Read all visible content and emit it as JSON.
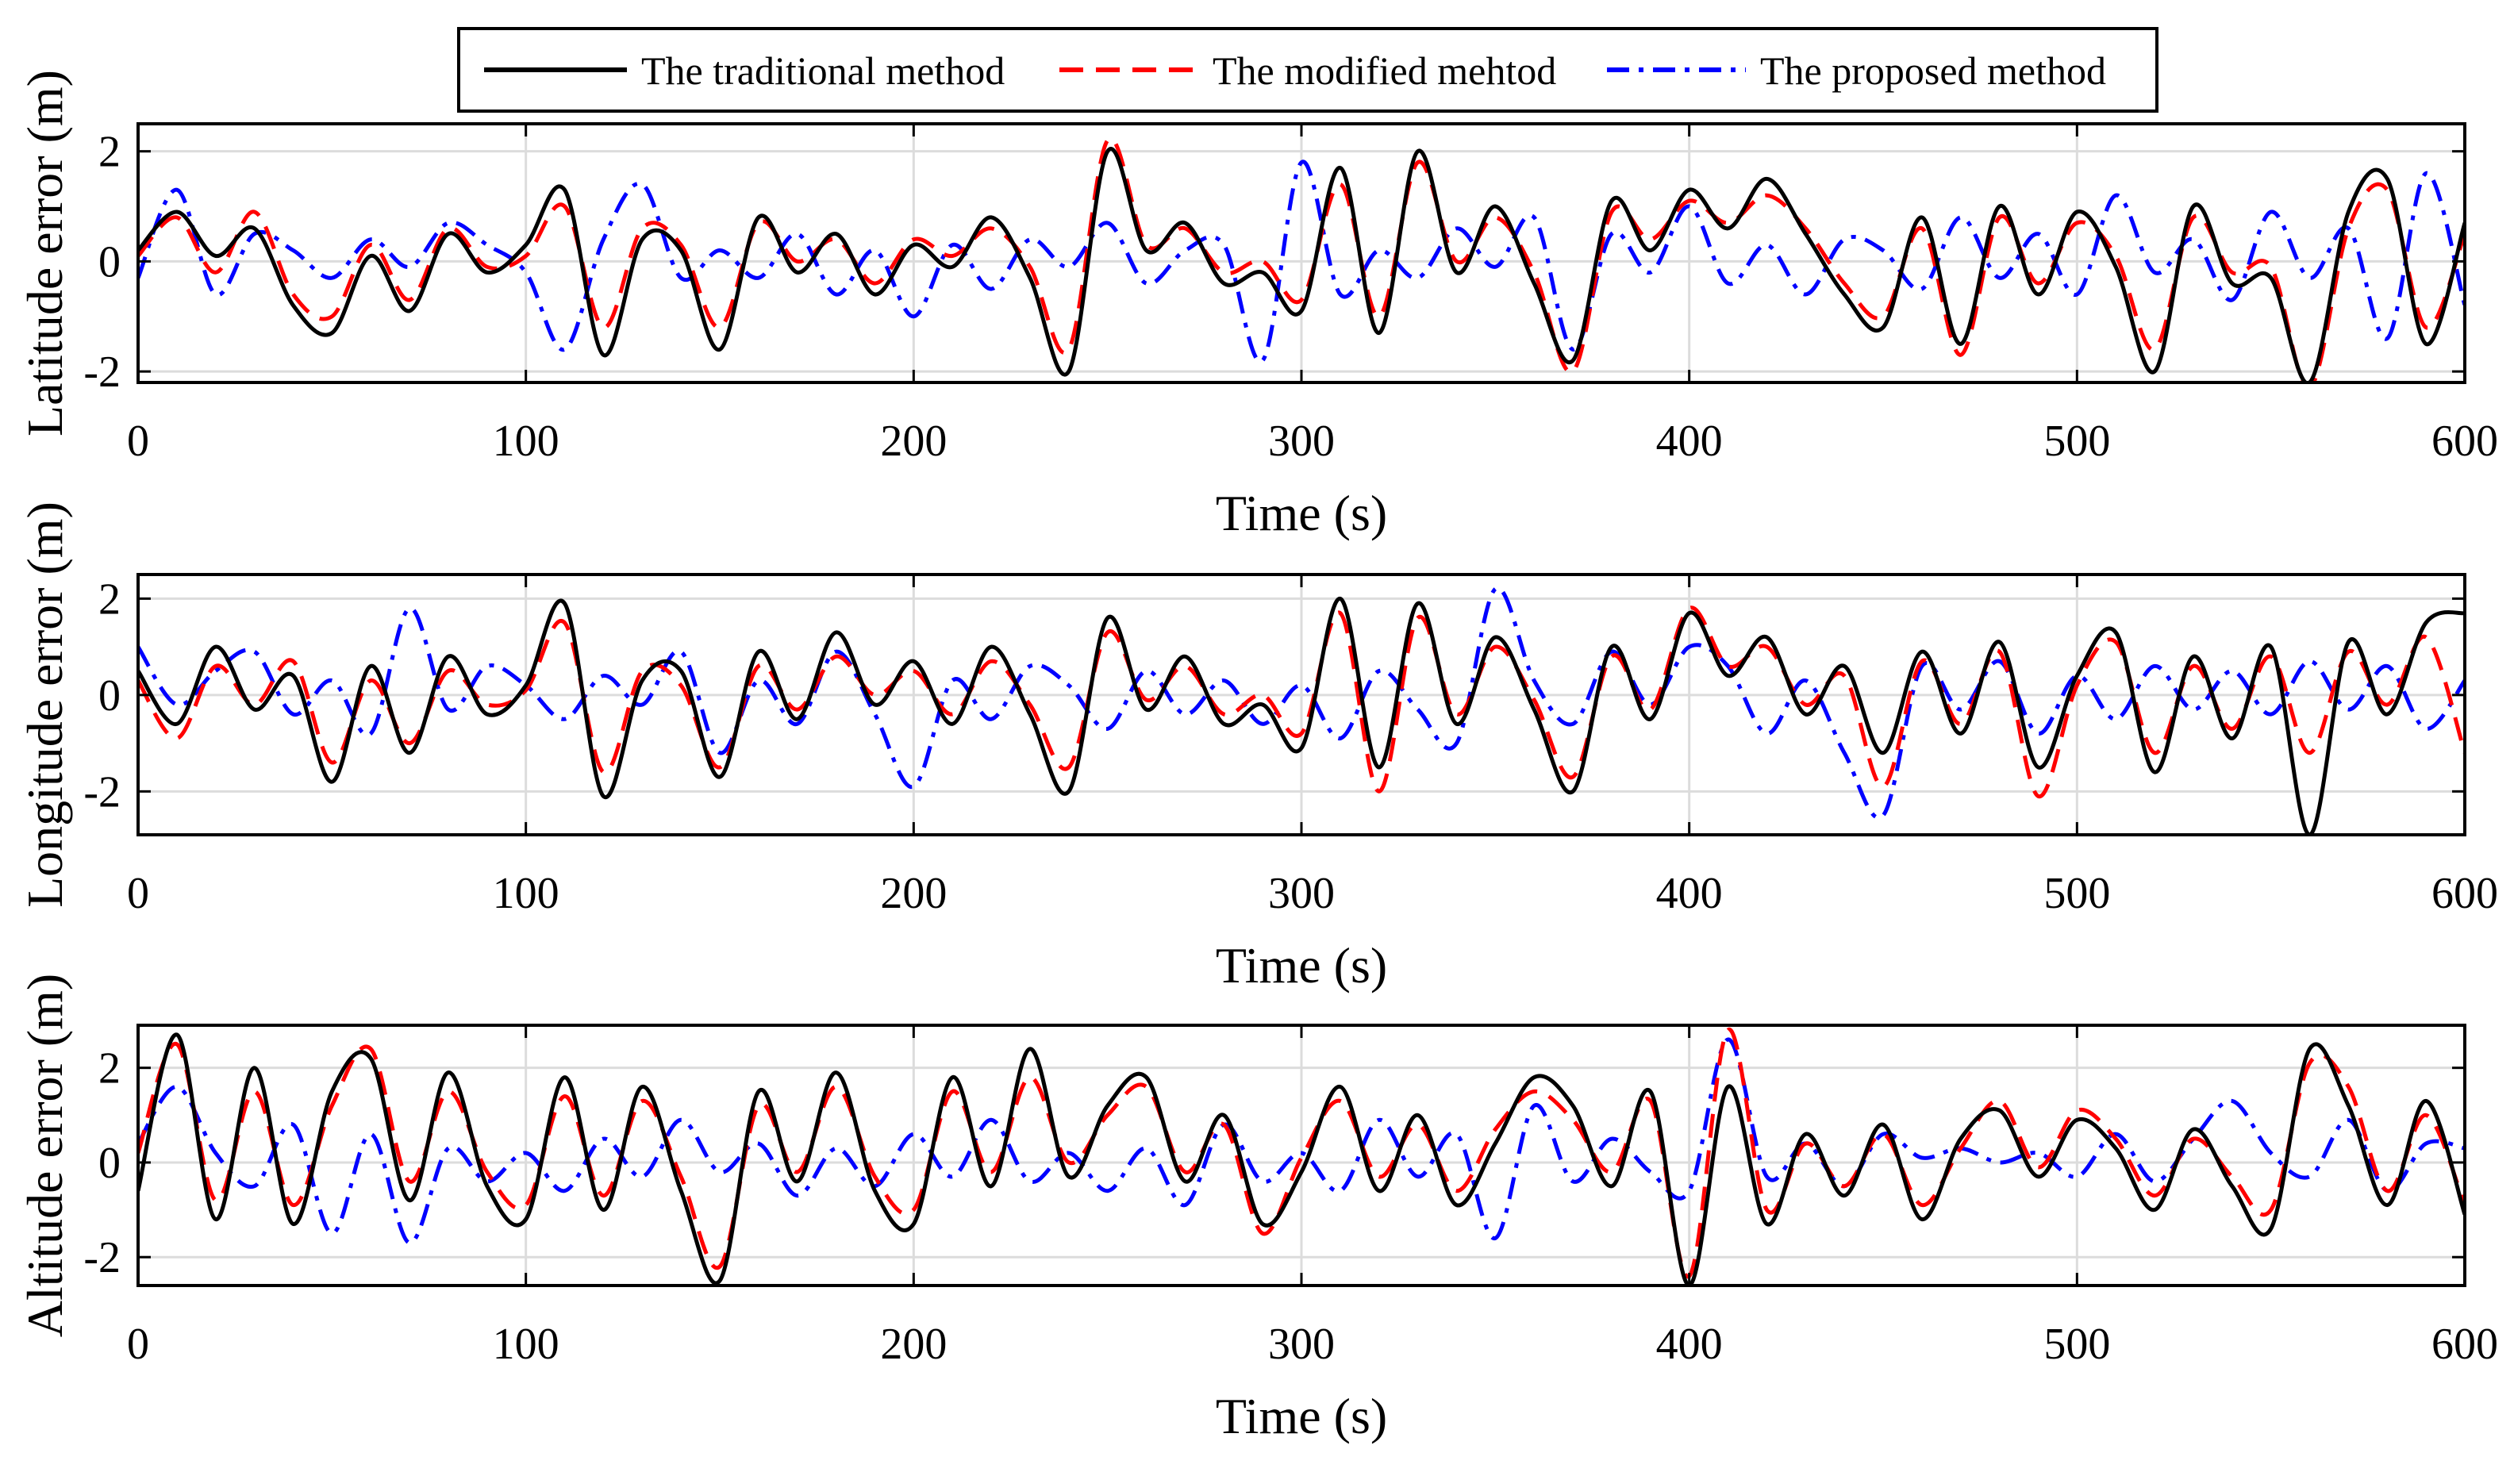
{
  "figure": {
    "legend": [
      {
        "label": "The traditional method",
        "color": "#000000",
        "dash": "solid"
      },
      {
        "label": "The modified mehtod",
        "color": "#ff0000",
        "dash": "dashed"
      },
      {
        "label": "The proposed method",
        "color": "#0000ff",
        "dash": "dashdot"
      }
    ]
  },
  "chart_data": [
    {
      "type": "line",
      "title": "",
      "xlabel": "Time (s)",
      "ylabel": "Latitude error (m)",
      "xlim": [
        0,
        600
      ],
      "ylim": [
        -2.2,
        2.5
      ],
      "xticks": [
        0,
        100,
        200,
        300,
        400,
        500,
        600
      ],
      "yticks": [
        -2,
        0,
        2
      ],
      "grid": true,
      "x": [
        0,
        10,
        20,
        30,
        40,
        50,
        60,
        70,
        80,
        90,
        100,
        110,
        120,
        130,
        140,
        150,
        160,
        170,
        180,
        190,
        200,
        210,
        220,
        230,
        240,
        250,
        260,
        270,
        280,
        290,
        300,
        310,
        320,
        330,
        340,
        350,
        360,
        370,
        380,
        390,
        400,
        410,
        420,
        430,
        440,
        450,
        460,
        470,
        480,
        490,
        500,
        510,
        520,
        530,
        540,
        550,
        560,
        570,
        580,
        590,
        600
      ],
      "series": [
        {
          "name": "The traditional method",
          "values": [
            0.2,
            0.9,
            0.1,
            0.6,
            -0.8,
            -1.3,
            0.1,
            -0.9,
            0.5,
            -0.2,
            0.3,
            1.3,
            -1.7,
            0.4,
            0.2,
            -1.6,
            0.8,
            -0.2,
            0.5,
            -0.6,
            0.3,
            -0.1,
            0.8,
            -0.3,
            -2.0,
            2.0,
            0.2,
            0.7,
            -0.4,
            -0.2,
            -0.9,
            1.7,
            -1.3,
            2.0,
            -0.2,
            1.0,
            -0.4,
            -1.8,
            1.1,
            0.2,
            1.3,
            0.6,
            1.5,
            0.5,
            -0.6,
            -1.2,
            0.8,
            -1.5,
            1.0,
            -0.6,
            0.9,
            -0.1,
            -2.0,
            1.0,
            -0.4,
            -0.3,
            -2.2,
            0.9,
            1.5,
            -1.5,
            0.7
          ]
        },
        {
          "name": "The modified mehtod",
          "values": [
            0.1,
            0.8,
            -0.2,
            0.9,
            -0.6,
            -1.0,
            0.3,
            -0.7,
            0.6,
            -0.1,
            0.1,
            1.0,
            -1.2,
            0.6,
            0.3,
            -1.2,
            0.7,
            0.0,
            0.4,
            -0.4,
            0.4,
            0.1,
            0.6,
            -0.1,
            -1.6,
            2.2,
            0.3,
            0.6,
            -0.2,
            0.0,
            -0.7,
            1.4,
            -1.0,
            1.8,
            0.0,
            0.8,
            -0.2,
            -2.0,
            0.9,
            0.4,
            1.1,
            0.7,
            1.2,
            0.6,
            -0.4,
            -1.0,
            0.6,
            -1.7,
            0.8,
            -0.4,
            0.7,
            0.1,
            -1.6,
            0.8,
            -0.2,
            -0.1,
            -2.3,
            0.6,
            1.3,
            -1.2,
            0.5
          ]
        },
        {
          "name": "The proposed method",
          "values": [
            -0.3,
            1.3,
            -0.6,
            0.5,
            0.2,
            -0.3,
            0.4,
            -0.1,
            0.7,
            0.3,
            -0.2,
            -1.6,
            0.4,
            1.4,
            -0.3,
            0.2,
            -0.3,
            0.5,
            -0.6,
            0.2,
            -1.0,
            0.3,
            -0.5,
            0.4,
            -0.1,
            0.7,
            -0.4,
            0.2,
            0.3,
            -1.8,
            1.8,
            -0.6,
            0.2,
            -0.3,
            0.6,
            -0.1,
            0.8,
            -1.6,
            0.5,
            -0.2,
            1.0,
            -0.4,
            0.3,
            -0.6,
            0.4,
            0.2,
            -0.5,
            0.8,
            -0.3,
            0.5,
            -0.6,
            1.2,
            -0.2,
            0.4,
            -0.7,
            0.9,
            -0.3,
            0.6,
            -1.4,
            1.6,
            -0.8
          ]
        }
      ]
    },
    {
      "type": "line",
      "title": "",
      "xlabel": "Time (s)",
      "ylabel": "Longitude error (m)",
      "xlim": [
        0,
        600
      ],
      "ylim": [
        -2.9,
        2.5
      ],
      "xticks": [
        0,
        100,
        200,
        300,
        400,
        500,
        600
      ],
      "yticks": [
        -2,
        0,
        2
      ],
      "grid": true,
      "x": [
        0,
        10,
        20,
        30,
        40,
        50,
        60,
        70,
        80,
        90,
        100,
        110,
        120,
        130,
        140,
        150,
        160,
        170,
        180,
        190,
        200,
        210,
        220,
        230,
        240,
        250,
        260,
        270,
        280,
        290,
        300,
        310,
        320,
        330,
        340,
        350,
        360,
        370,
        380,
        390,
        400,
        410,
        420,
        430,
        440,
        450,
        460,
        470,
        480,
        490,
        500,
        510,
        520,
        530,
        540,
        550,
        560,
        570,
        580,
        590,
        600
      ],
      "series": [
        {
          "name": "The traditional method",
          "values": [
            0.5,
            -0.6,
            1.0,
            -0.3,
            0.4,
            -1.8,
            0.6,
            -1.2,
            0.8,
            -0.4,
            0.2,
            1.9,
            -2.1,
            0.3,
            0.5,
            -1.7,
            0.9,
            -0.5,
            1.3,
            -0.2,
            0.7,
            -0.6,
            1.0,
            -0.4,
            -2.0,
            1.6,
            -0.3,
            0.8,
            -0.6,
            -0.2,
            -1.1,
            2.0,
            -1.5,
            1.9,
            -0.6,
            1.2,
            -0.3,
            -2.0,
            1.0,
            -0.5,
            1.7,
            0.4,
            1.2,
            -0.4,
            0.6,
            -1.2,
            0.9,
            -0.8,
            1.1,
            -1.5,
            0.4,
            1.3,
            -1.6,
            0.8,
            -0.9,
            1.0,
            -2.9,
            1.1,
            -0.4,
            1.5,
            1.7
          ]
        },
        {
          "name": "The modified mehtod",
          "values": [
            0.3,
            -0.9,
            0.6,
            -0.2,
            0.7,
            -1.4,
            0.3,
            -1.0,
            0.5,
            -0.2,
            0.1,
            1.5,
            -1.6,
            0.5,
            0.2,
            -1.5,
            0.6,
            -0.3,
            0.8,
            0.0,
            0.5,
            -0.4,
            0.7,
            -0.2,
            -1.5,
            1.3,
            -0.1,
            0.6,
            -0.4,
            0.0,
            -0.8,
            1.7,
            -2.0,
            1.6,
            -0.4,
            1.0,
            -0.1,
            -1.7,
            0.8,
            -0.3,
            1.8,
            0.6,
            1.0,
            -0.2,
            0.4,
            -1.9,
            0.7,
            -0.6,
            0.9,
            -2.1,
            0.2,
            1.1,
            -1.2,
            0.6,
            -0.7,
            0.8,
            -1.2,
            0.9,
            -0.2,
            1.2,
            -1.2
          ]
        },
        {
          "name": "The proposed method",
          "values": [
            1.0,
            -0.2,
            0.5,
            0.9,
            -0.4,
            0.3,
            -0.8,
            1.8,
            -0.3,
            0.6,
            0.2,
            -0.5,
            0.4,
            -0.2,
            0.9,
            -1.2,
            0.3,
            -0.6,
            0.9,
            -0.4,
            -1.9,
            0.3,
            -0.5,
            0.6,
            0.2,
            -0.7,
            0.5,
            -0.4,
            0.3,
            -0.6,
            0.2,
            -0.9,
            0.5,
            -0.3,
            -1.0,
            2.2,
            0.3,
            -0.6,
            0.9,
            -0.2,
            1.0,
            0.6,
            -0.8,
            0.3,
            -1.2,
            -2.5,
            0.6,
            -0.3,
            0.7,
            -0.8,
            0.4,
            -0.5,
            0.6,
            -0.3,
            0.5,
            -0.4,
            0.7,
            -0.3,
            0.6,
            -0.7,
            0.3
          ]
        }
      ]
    },
    {
      "type": "line",
      "title": "",
      "xlabel": "Time (s)",
      "ylabel": "Altitude error (m)",
      "xlim": [
        0,
        600
      ],
      "ylim": [
        -2.6,
        2.9
      ],
      "xticks": [
        0,
        100,
        200,
        300,
        400,
        500,
        600
      ],
      "yticks": [
        -2,
        0,
        2
      ],
      "grid": true,
      "x": [
        0,
        10,
        20,
        30,
        40,
        50,
        60,
        70,
        80,
        90,
        100,
        110,
        120,
        130,
        140,
        150,
        160,
        170,
        180,
        190,
        200,
        210,
        220,
        230,
        240,
        250,
        260,
        270,
        280,
        290,
        300,
        310,
        320,
        330,
        340,
        350,
        360,
        370,
        380,
        390,
        400,
        410,
        420,
        430,
        440,
        450,
        460,
        470,
        480,
        490,
        500,
        510,
        520,
        530,
        540,
        550,
        560,
        570,
        580,
        590,
        600
      ],
      "series": [
        {
          "name": "The traditional method",
          "values": [
            -0.6,
            2.7,
            -1.2,
            2.0,
            -1.3,
            1.5,
            2.2,
            -0.8,
            1.9,
            -0.5,
            -1.2,
            1.8,
            -1.0,
            1.6,
            -0.6,
            -2.5,
            1.5,
            -0.4,
            1.9,
            -0.6,
            -1.3,
            1.8,
            -0.5,
            2.4,
            -0.3,
            1.2,
            1.8,
            -0.4,
            1.0,
            -1.3,
            -0.2,
            1.6,
            -0.6,
            1.0,
            -0.9,
            0.4,
            1.8,
            1.2,
            -0.5,
            1.5,
            -2.6,
            1.6,
            -1.3,
            0.6,
            -0.7,
            0.8,
            -1.2,
            0.5,
            1.1,
            -0.3,
            0.9,
            0.3,
            -1.0,
            0.7,
            -0.5,
            -1.4,
            2.4,
            1.2,
            -0.9,
            1.3,
            -1.1
          ]
        },
        {
          "name": "The modified mehtod",
          "values": [
            0.2,
            2.5,
            -0.8,
            1.5,
            -0.9,
            1.2,
            2.4,
            -0.4,
            1.5,
            -0.2,
            -0.9,
            1.4,
            -0.7,
            1.3,
            -0.3,
            -2.2,
            1.2,
            -0.2,
            1.6,
            -0.3,
            -1.0,
            1.5,
            -0.2,
            1.8,
            0.0,
            1.0,
            1.6,
            -0.2,
            0.8,
            -1.5,
            0.1,
            1.3,
            -0.3,
            0.8,
            -0.6,
            0.7,
            1.5,
            0.9,
            -0.2,
            1.3,
            -2.4,
            2.8,
            -1.0,
            0.4,
            -0.5,
            0.6,
            -0.9,
            0.3,
            1.3,
            -0.1,
            1.1,
            0.5,
            -0.7,
            0.5,
            -0.3,
            -1.0,
            2.1,
            1.6,
            -0.6,
            1.0,
            -0.9
          ]
        },
        {
          "name": "The proposed method",
          "values": [
            0.4,
            1.6,
            0.2,
            -0.5,
            0.8,
            -1.5,
            0.6,
            -1.7,
            0.3,
            -0.4,
            0.2,
            -0.6,
            0.5,
            -0.3,
            0.9,
            -0.2,
            0.4,
            -0.7,
            0.3,
            -0.5,
            0.6,
            -0.3,
            0.9,
            -0.4,
            0.2,
            -0.6,
            0.3,
            -0.9,
            0.8,
            -0.4,
            0.2,
            -0.6,
            0.9,
            -0.3,
            0.6,
            -1.6,
            1.2,
            -0.4,
            0.5,
            -0.2,
            -0.6,
            2.6,
            -0.3,
            0.4,
            -0.5,
            0.6,
            0.1,
            0.3,
            0.0,
            0.2,
            -0.3,
            0.6,
            -0.4,
            0.5,
            1.3,
            0.2,
            -0.3,
            0.9,
            -0.6,
            0.4,
            0.3
          ]
        }
      ]
    }
  ]
}
